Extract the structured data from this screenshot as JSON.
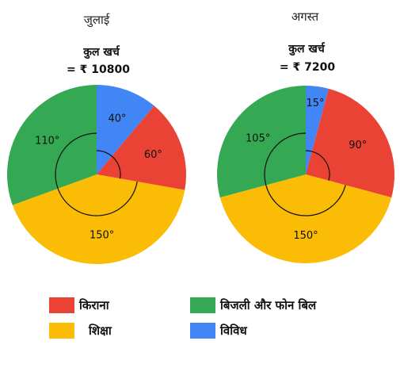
{
  "chart_data": [
    {
      "type": "pie",
      "title": "जुलाई",
      "subtitle": "कुल खर्च",
      "total": "= ₹ 10800",
      "units": "degrees",
      "slices": [
        {
          "category": "विविध",
          "value": 40,
          "label": "40°",
          "color": "#4285F4"
        },
        {
          "category": "किराना",
          "value": 60,
          "label": "60°",
          "color": "#EA4335"
        },
        {
          "category": "शिक्षा",
          "value": 150,
          "label": "150°",
          "color": "#FBBC05"
        },
        {
          "category": "बिजली और फोन बिल",
          "value": 110,
          "label": "110°",
          "color": "#34A853"
        }
      ]
    },
    {
      "type": "pie",
      "title": "अगस्त",
      "subtitle": "कुल खर्च",
      "total": "= ₹ 7200",
      "units": "degrees",
      "slices": [
        {
          "category": "विविध",
          "value": 15,
          "label": "15°",
          "color": "#4285F4"
        },
        {
          "category": "किराना",
          "value": 90,
          "label": "90°",
          "color": "#EA4335"
        },
        {
          "category": "शिक्षा",
          "value": 150,
          "label": "150°",
          "color": "#FBBC05"
        },
        {
          "category": "बिजली और फोन बिल",
          "value": 105,
          "label": "105°",
          "color": "#34A853"
        }
      ]
    }
  ],
  "legend": [
    {
      "label": "किराना",
      "color": "#EA4335"
    },
    {
      "label": "शिक्षा",
      "color": "#FBBC05"
    },
    {
      "label": "बिजली और फोन बिल",
      "color": "#34A853"
    },
    {
      "label": "विविध",
      "color": "#4285F4"
    }
  ]
}
